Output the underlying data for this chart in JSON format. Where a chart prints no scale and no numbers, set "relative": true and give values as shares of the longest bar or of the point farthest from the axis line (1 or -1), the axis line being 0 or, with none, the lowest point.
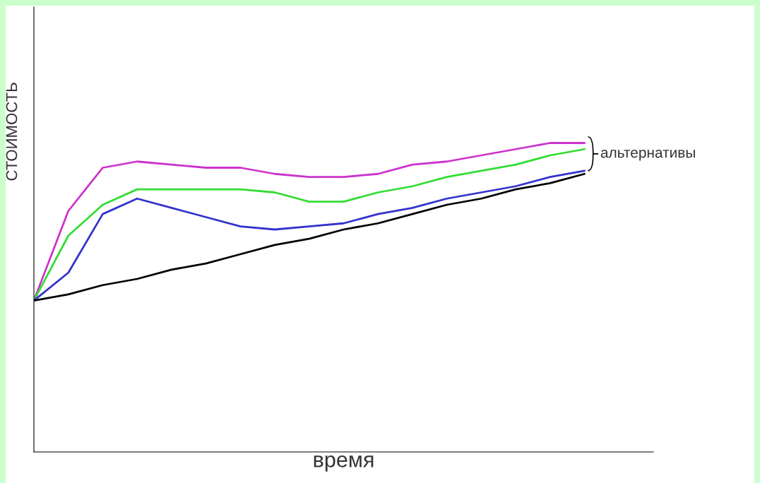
{
  "chart_data": {
    "type": "line",
    "relative": true,
    "xlabel": "время",
    "ylabel": "СТОИМОСТЬ",
    "annotations": [
      "альтернативы"
    ],
    "categories": [
      null,
      null,
      null,
      null,
      null,
      null,
      null,
      null,
      null,
      null,
      null,
      null,
      null,
      null,
      null,
      null,
      null,
      null,
      null
    ],
    "series": [
      {
        "color": "#cc33cc",
        "values": [
          0.49,
          0.78,
          0.92,
          0.94,
          0.93,
          0.92,
          0.92,
          0.9,
          0.89,
          0.89,
          0.9,
          0.93,
          0.94,
          0.96,
          0.98,
          1.0,
          1.0,
          null,
          null
        ]
      },
      {
        "color": "#33dd33",
        "values": [
          0.49,
          0.7,
          0.8,
          0.85,
          0.85,
          0.85,
          0.85,
          0.84,
          0.81,
          0.81,
          0.84,
          0.86,
          0.89,
          0.91,
          0.93,
          0.96,
          0.98,
          null,
          null
        ]
      },
      {
        "color": "#3333cc",
        "values": [
          0.49,
          0.58,
          0.77,
          0.82,
          0.79,
          0.76,
          0.73,
          0.72,
          0.73,
          0.74,
          0.77,
          0.79,
          0.82,
          0.84,
          0.86,
          0.89,
          0.91,
          null,
          null
        ]
      },
      {
        "color": "#000000",
        "values": [
          0.49,
          0.51,
          0.54,
          0.56,
          0.59,
          0.61,
          0.64,
          0.67,
          0.69,
          0.72,
          0.74,
          0.77,
          0.8,
          0.82,
          0.85,
          0.87,
          0.9,
          null,
          null
        ]
      }
    ]
  }
}
